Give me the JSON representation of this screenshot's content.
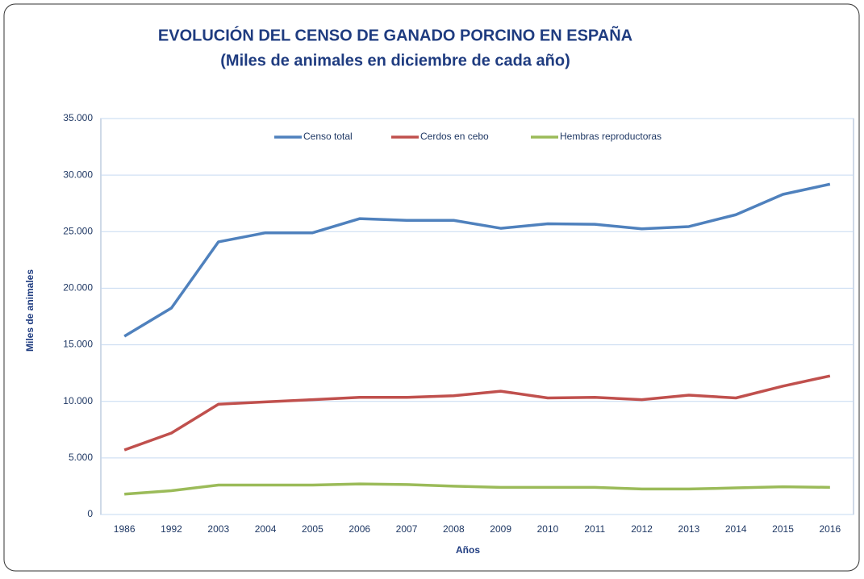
{
  "chart_data": {
    "type": "line",
    "title": "EVOLUCIÓN DEL CENSO DE GANADO PORCINO EN ESPAÑA",
    "subtitle": "(Miles de animales en diciembre de cada año)",
    "x_label": "Años",
    "y_label": "Miles de animales",
    "categories": [
      "1986",
      "1992",
      "2003",
      "2004",
      "2005",
      "2006",
      "2007",
      "2008",
      "2009",
      "2010",
      "2011",
      "2012",
      "2013",
      "2014",
      "2015",
      "2016"
    ],
    "series": [
      {
        "name": "Censo total",
        "color": "#4f81bd",
        "values": [
          15750,
          18250,
          24100,
          24900,
          24900,
          26150,
          26000,
          26000,
          25300,
          25700,
          25650,
          25250,
          25450,
          26500,
          28300,
          29200
        ]
      },
      {
        "name": "Cerdos en cebo",
        "color": "#c0504d",
        "values": [
          5700,
          7200,
          9750,
          9950,
          10150,
          10350,
          10350,
          10500,
          10900,
          10300,
          10350,
          10150,
          10550,
          10300,
          11350,
          12250
        ]
      },
      {
        "name": "Hembras reproductoras",
        "color": "#9bbb59",
        "values": [
          1800,
          2100,
          2600,
          2600,
          2600,
          2700,
          2650,
          2500,
          2400,
          2400,
          2400,
          2250,
          2250,
          2350,
          2450,
          2400
        ]
      }
    ],
    "ylim": [
      0,
      35000
    ],
    "yticks": [
      0,
      {
        "value": 5000,
        "label": "5.000"
      },
      {
        "value": 10000,
        "label": "10.000"
      },
      {
        "value": 15000,
        "label": "15.000"
      },
      {
        "value": 20000,
        "label": "20.000"
      },
      {
        "value": 25000,
        "label": "25.000"
      },
      {
        "value": 30000,
        "label": "30.000"
      },
      {
        "value": 35000,
        "label": "35.000"
      }
    ],
    "grid": true,
    "legend": "top"
  }
}
